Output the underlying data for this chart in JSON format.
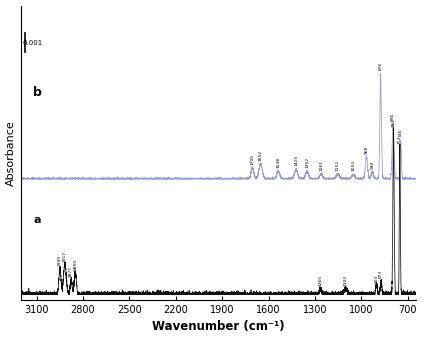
{
  "title": "",
  "xlabel": "Wavenumber (cm⁻¹)",
  "ylabel": "Absorbance",
  "xlim": [
    3200,
    650
  ],
  "scale_bar_label": "0.001",
  "label_a": "a",
  "label_b": "b",
  "color_a": "#111111",
  "color_b": "#9999cc",
  "background_color": "#ffffff",
  "xticks": [
    3100,
    2800,
    2500,
    2200,
    1900,
    1600,
    1300,
    1000,
    700
  ]
}
